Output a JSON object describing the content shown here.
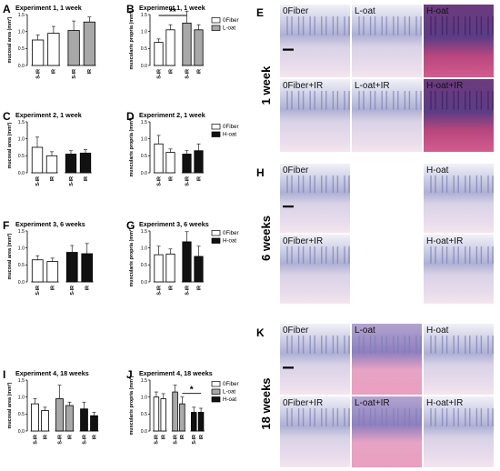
{
  "colors": {
    "white": "#ffffff",
    "gray": "#a8a8a8",
    "black": "#111111"
  },
  "chart_data": [
    {
      "panel": "A",
      "type": "bar",
      "title": "Experiment 1, 1 week",
      "ylabel": "mucosal area (mm²)",
      "ylim": [
        0,
        1.5
      ],
      "yticks": [
        "0.0",
        "0.5",
        "1.0",
        "1.5"
      ],
      "categories": [
        "S-IR",
        "IR",
        "S-IR",
        "IR"
      ],
      "values": [
        0.75,
        0.95,
        1.03,
        1.28
      ],
      "errors": [
        0.15,
        0.2,
        0.28,
        0.15
      ],
      "fills": [
        "white",
        "white",
        "gray",
        "gray"
      ],
      "legend": [],
      "significance": []
    },
    {
      "panel": "B",
      "type": "bar",
      "title": "Experiment 1, 1 week",
      "ylabel": "muscularis propria (mm²)",
      "ylim": [
        0,
        1.5
      ],
      "yticks": [
        "0.0",
        "0.5",
        "1.0",
        "1.5"
      ],
      "categories": [
        "S-IR",
        "IR",
        "S-IR",
        "IR"
      ],
      "values": [
        0.68,
        1.05,
        1.25,
        1.05
      ],
      "errors": [
        0.1,
        0.15,
        0.35,
        0.15
      ],
      "fills": [
        "white",
        "white",
        "gray",
        "gray"
      ],
      "legend": [
        {
          "label": "0Fiber",
          "fill": "white"
        },
        {
          "label": "L-oat",
          "fill": "gray"
        }
      ],
      "significance": [
        {
          "from": 0,
          "to": 2,
          "label": "**"
        }
      ]
    },
    {
      "panel": "C",
      "type": "bar",
      "title": "Experiment 2, 1 week",
      "ylabel": "mucosal area (mm²)",
      "ylim": [
        0,
        1.5
      ],
      "yticks": [
        "0.0",
        "0.5",
        "1.0",
        "1.5"
      ],
      "categories": [
        "S-IR",
        "IR",
        "S-IR",
        "IR"
      ],
      "values": [
        0.75,
        0.5,
        0.55,
        0.58
      ],
      "errors": [
        0.3,
        0.12,
        0.1,
        0.1
      ],
      "fills": [
        "white",
        "white",
        "black",
        "black"
      ],
      "legend": [],
      "significance": []
    },
    {
      "panel": "D",
      "type": "bar",
      "title": "Experiment 2, 1 week",
      "ylabel": "muscularis propria (mm²)",
      "ylim": [
        0,
        1.5
      ],
      "yticks": [
        "0.0",
        "0.5",
        "1.0",
        "1.5"
      ],
      "categories": [
        "S-IR",
        "IR",
        "S-IR",
        "IR"
      ],
      "values": [
        0.85,
        0.6,
        0.55,
        0.65
      ],
      "errors": [
        0.25,
        0.1,
        0.1,
        0.2
      ],
      "fills": [
        "white",
        "white",
        "black",
        "black"
      ],
      "legend": [
        {
          "label": "0Fiber",
          "fill": "white"
        },
        {
          "label": "H-oat",
          "fill": "black"
        }
      ],
      "significance": []
    },
    {
      "panel": "F",
      "type": "bar",
      "title": "Experiment 3, 6 weeks",
      "ylabel": "mucosal area (mm²)",
      "ylim": [
        0,
        1.5
      ],
      "yticks": [
        "0.0",
        "0.5",
        "1.0",
        "1.5"
      ],
      "categories": [
        "S-IR",
        "IR",
        "S-IR",
        "IR"
      ],
      "values": [
        0.65,
        0.6,
        0.87,
        0.83
      ],
      "errors": [
        0.12,
        0.1,
        0.2,
        0.3
      ],
      "fills": [
        "white",
        "white",
        "black",
        "black"
      ],
      "legend": [],
      "significance": []
    },
    {
      "panel": "G",
      "type": "bar",
      "title": "Experiment 3, 6 weeks",
      "ylabel": "muscularis propria (mm²)",
      "ylim": [
        0,
        1.5
      ],
      "yticks": [
        "0.0",
        "0.5",
        "1.0",
        "1.5"
      ],
      "categories": [
        "S-IR",
        "IR",
        "S-IR",
        "IR"
      ],
      "values": [
        0.8,
        0.82,
        1.18,
        0.75
      ],
      "errors": [
        0.25,
        0.15,
        0.3,
        0.3
      ],
      "fills": [
        "white",
        "white",
        "black",
        "black"
      ],
      "legend": [
        {
          "label": "0Fiber",
          "fill": "white"
        },
        {
          "label": "H-oat",
          "fill": "black"
        }
      ],
      "significance": []
    },
    {
      "panel": "I",
      "type": "bar",
      "title": "Experiment 4, 18 weeks",
      "ylabel": "mucosal area (mm²)",
      "ylim": [
        0,
        1.5
      ],
      "yticks": [
        "0.0",
        "0.5",
        "1.0",
        "1.5"
      ],
      "categories": [
        "S-IR",
        "IR",
        "S-IR",
        "IR",
        "S-IR",
        "IR"
      ],
      "values": [
        0.8,
        0.6,
        0.95,
        0.75,
        0.65,
        0.45
      ],
      "errors": [
        0.15,
        0.1,
        0.4,
        0.1,
        0.2,
        0.1
      ],
      "fills": [
        "white",
        "white",
        "gray",
        "gray",
        "black",
        "black"
      ],
      "legend": [],
      "significance": []
    },
    {
      "panel": "J",
      "type": "bar",
      "title": "Experiment 4, 18 weeks",
      "ylabel": "muscularis propria (mm²)",
      "ylim": [
        0,
        1.5
      ],
      "yticks": [
        "0.0",
        "0.5",
        "1.0",
        "1.5"
      ],
      "categories": [
        "S-IR",
        "IR",
        "S-IR",
        "IR",
        "S-IR",
        "IR"
      ],
      "values": [
        1.0,
        0.95,
        1.15,
        0.8,
        0.55,
        0.55
      ],
      "errors": [
        0.15,
        0.15,
        0.2,
        0.2,
        0.15,
        0.12
      ],
      "fills": [
        "white",
        "white",
        "gray",
        "gray",
        "black",
        "black"
      ],
      "legend": [
        {
          "label": "0Fiber",
          "fill": "white"
        },
        {
          "label": "L-oat",
          "fill": "gray"
        },
        {
          "label": "H-oat",
          "fill": "black"
        }
      ],
      "significance": [
        {
          "from": 3,
          "to": 5,
          "label": "*"
        }
      ]
    }
  ],
  "micrographs": [
    {
      "panel": "E",
      "row_label": "1 week",
      "labels": [
        "0Fiber",
        "L-oat",
        "H-oat",
        "0Fiber+IR",
        "L-oat+IR",
        "H-oat+IR"
      ],
      "tones": [
        "pale",
        "pale",
        "dark",
        "pale",
        "pale",
        "dark"
      ]
    },
    {
      "panel": "H",
      "row_label": "6 weeks",
      "labels": [
        "0Fiber",
        "H-oat",
        "0Fiber+IR",
        "H-oat+IR"
      ],
      "tones": [
        "pale",
        "pale",
        "pale",
        "pale"
      ]
    },
    {
      "panel": "K",
      "row_label": "18 weeks",
      "labels": [
        "0Fiber",
        "L-oat",
        "H-oat",
        "0Fiber+IR",
        "L-oat+IR",
        "H-oat+IR"
      ],
      "tones": [
        "pale",
        "pink",
        "pale",
        "pale",
        "pink",
        "pale"
      ]
    }
  ]
}
